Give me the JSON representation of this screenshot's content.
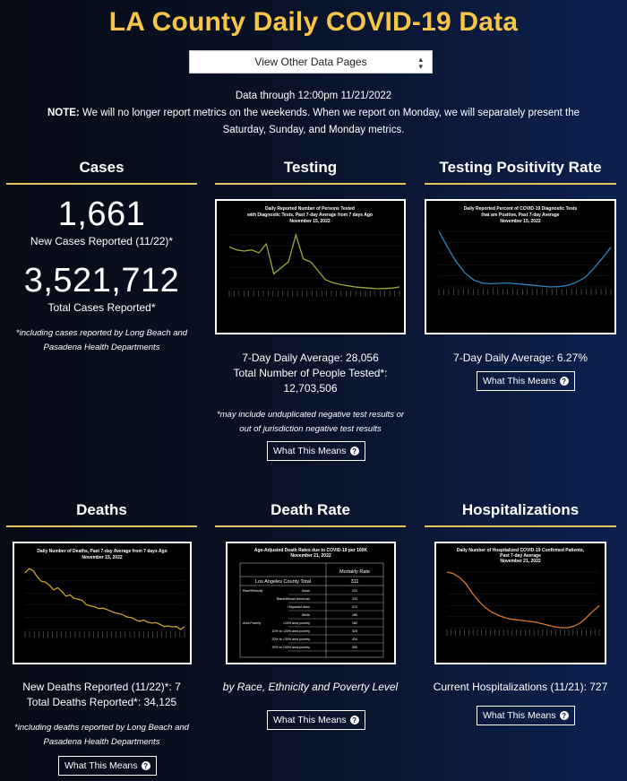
{
  "page": {
    "title": "LA County Daily COVID-19 Data",
    "select_label": "View Other Data Pages",
    "data_through": "Data through 12:00pm 11/21/2022",
    "note_label": "NOTE:",
    "note_text": " We will no longer report metrics on the weekends. When we report on Monday, we will separately present the Saturday, Sunday, and Monday metrics."
  },
  "cases": {
    "title": "Cases",
    "new_cases": "1,661",
    "new_cases_label": "New Cases Reported (11/22)*",
    "total_cases": "3,521,712",
    "total_cases_label": "Total Cases Reported*",
    "footnote": "*including cases reported by Long Beach and Pasadena Health Departments"
  },
  "testing": {
    "title": "Testing",
    "chart_title_1": "Daily Reported Number of Persons Tested",
    "chart_title_2": "with Diagnostic Tests, Past 7-day Average from 7 days Ago",
    "chart_title_3": "November 15, 2022",
    "avg": "7-Day Daily Average: 28,056",
    "total_label": "Total Number of People Tested*:",
    "total": "12,703,506",
    "footnote": "*may include unduplicated negative test results or out of jurisdiction negative test results",
    "button": "What This Means"
  },
  "positivity": {
    "title": "Testing Positivity Rate",
    "chart_title_1": "Daily Reported Percent of COVID-19 Diagnostic Tests",
    "chart_title_2": "that are Positive, Past 7-day Average",
    "chart_title_3": "November 15, 2022",
    "avg": "7-Day Daily Average: 6.27%",
    "button": "What This Means"
  },
  "deaths": {
    "title": "Deaths",
    "chart_title_1": "Daily Number of Deaths, Past 7-day Average from 7 days Ago",
    "chart_title_2": "November 15, 2022",
    "new_deaths": "New Deaths Reported (11/22)*: 7",
    "total_deaths": "Total Deaths Reported*: 34,125",
    "footnote": "*including deaths reported by Long Beach and Pasadena Health Departments",
    "button": "What This Means"
  },
  "death_rate": {
    "title": "Death Rate",
    "chart_title_1": "Age-Adjusted Death Rates due to COVID-19 per 100K",
    "chart_title_2": "November 21, 2022",
    "col_header": "Mortality Rate",
    "total_row_label": "Los Angeles County Total",
    "total_row_value": "311",
    "group_race": "Race/Ethnicity",
    "group_poverty": "Area Poverty",
    "rows": [
      {
        "label": "Asian",
        "value": "231"
      },
      {
        "label": "Black/African American",
        "value": "333"
      },
      {
        "label": "Hispanic/Latino",
        "value": "472"
      },
      {
        "label": "White",
        "value": "185"
      },
      {
        "label": "<10% area poverty",
        "value": "180"
      },
      {
        "label": "10% to <20% area poverty",
        "value": "328"
      },
      {
        "label": "20% to <30% area poverty",
        "value": "434"
      },
      {
        "label": "30% to 100% area poverty",
        "value": "530"
      }
    ],
    "caption": "by Race, Ethnicity and Poverty Level",
    "button": "What This Means"
  },
  "hospitalizations": {
    "title": "Hospitalizations",
    "chart_title_1": "Daily Number of Hospitalized COVID-19 Confirmed Patients,",
    "chart_title_2": "Past 7-day Average",
    "chart_title_3": "November 21, 2022",
    "current": "Current Hospitalizations (11/21): 727",
    "button": "What This Means"
  },
  "colors": {
    "accent_gold": "#f7c548",
    "rule_gold": "#e6c35c",
    "testing_line": "#8fae3c",
    "positivity_line": "#2e86c1",
    "deaths_line": "#c9a227",
    "hosp_line": "#d9782e"
  },
  "chart_data": [
    {
      "type": "line",
      "series": [
        {
          "values": [
            4050,
            4000,
            3980,
            4000,
            3950,
            4100,
            3600,
            3700,
            3800,
            4250,
            3850,
            3800,
            3650,
            3500,
            3450,
            3420,
            3400,
            3380,
            3370,
            3360,
            3350,
            3355,
            3360,
            3380
          ]
        }
      ]
    },
    {
      "type": "line",
      "series": [
        {
          "values": [
            14.0,
            12.0,
            10.2,
            8.8,
            7.9,
            7.5,
            7.4,
            7.45,
            7.5,
            7.4,
            7.3,
            7.2,
            7.1,
            7.0,
            7.05,
            7.2,
            7.6,
            8.2,
            9.3,
            10.6,
            12.0
          ]
        }
      ]
    },
    {
      "type": "line",
      "series": [
        {
          "values": [
            16,
            17,
            16.5,
            15,
            14,
            13.8,
            13,
            12,
            12.5,
            11.6,
            10.5,
            10.8,
            10,
            9.8,
            9.5,
            8.5,
            8.2,
            8.0,
            7.6,
            7.7,
            7.4,
            7.0,
            6.6,
            6.4,
            6.1,
            5.6,
            5.5,
            5.0,
            4.6,
            4.9,
            4.4,
            4.2,
            4.3,
            3.9,
            3.4,
            3.5,
            3.3,
            3.4,
            2.7,
            3.3
          ]
        }
      ]
    },
    {
      "type": "line",
      "series": [
        {
          "values": [
            1300,
            1280,
            1230,
            1150,
            1030,
            930,
            850,
            790,
            750,
            720,
            700,
            690,
            680,
            670,
            660,
            640,
            620,
            600,
            590,
            590,
            610,
            650,
            720,
            800,
            870
          ]
        }
      ]
    }
  ]
}
